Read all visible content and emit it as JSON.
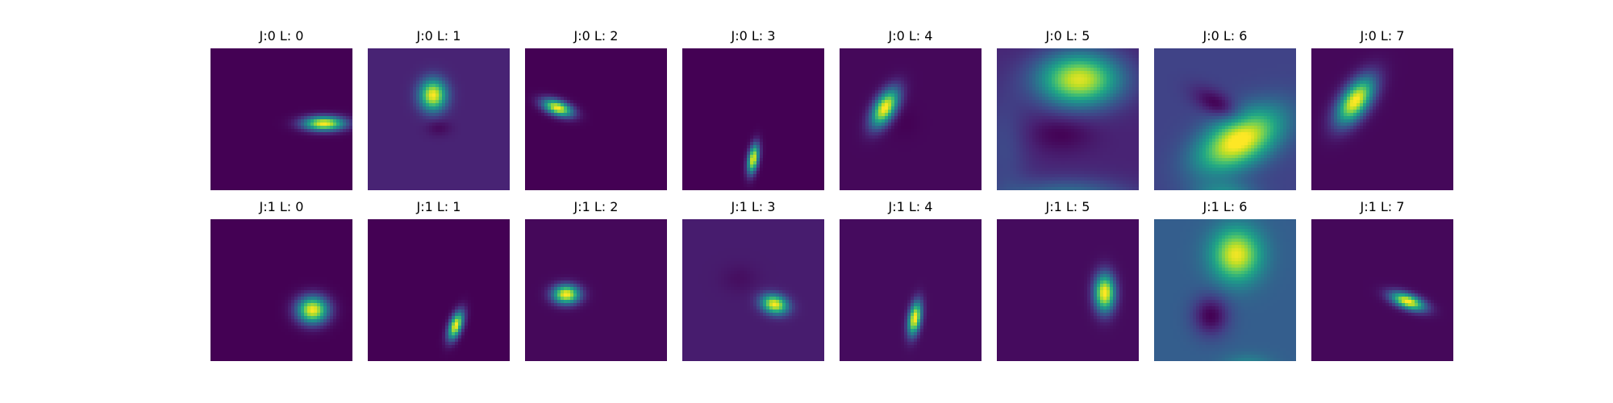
{
  "chart_data": {
    "type": "heatmap",
    "colormap": "viridis",
    "grid": false,
    "axes": "off",
    "rows": 2,
    "cols": 8,
    "panels": [
      {
        "title": "J:0 L: 0",
        "background": 0.0,
        "blobs": [
          {
            "cx": 0.8,
            "cy": 0.53,
            "sx": 0.1,
            "sy": 0.035,
            "angle": 0,
            "amp": 1.0
          }
        ]
      },
      {
        "title": "J:0 L: 1",
        "background": 0.1,
        "blobs": [
          {
            "cx": 0.46,
            "cy": 0.33,
            "sx": 0.065,
            "sy": 0.075,
            "angle": 0,
            "amp": 0.9
          },
          {
            "cx": 0.5,
            "cy": 0.56,
            "sx": 0.06,
            "sy": 0.04,
            "angle": 0,
            "amp": -0.08
          }
        ]
      },
      {
        "title": "J:0 L: 2",
        "background": 0.0,
        "blobs": [
          {
            "cx": 0.23,
            "cy": 0.42,
            "sx": 0.075,
            "sy": 0.035,
            "angle": 20,
            "amp": 1.0
          }
        ]
      },
      {
        "title": "J:0 L: 3",
        "background": 0.0,
        "blobs": [
          {
            "cx": 0.5,
            "cy": 0.78,
            "sx": 0.025,
            "sy": 0.07,
            "angle": 10,
            "amp": 1.0
          }
        ]
      },
      {
        "title": "J:0 L: 4",
        "background": 0.02,
        "blobs": [
          {
            "cx": 0.32,
            "cy": 0.42,
            "sx": 0.05,
            "sy": 0.1,
            "angle": 30,
            "amp": 1.0
          },
          {
            "cx": 0.45,
            "cy": 0.52,
            "sx": 0.08,
            "sy": 0.08,
            "angle": 0,
            "amp": -0.02
          }
        ]
      },
      {
        "title": "J:0 L: 5",
        "background": 0.1,
        "blobs": [
          {
            "cx": 0.58,
            "cy": 0.22,
            "sx": 0.2,
            "sy": 0.13,
            "angle": 0,
            "amp": 0.85
          },
          {
            "cx": 0.45,
            "cy": 0.6,
            "sx": 0.16,
            "sy": 0.09,
            "angle": 0,
            "amp": -0.1
          },
          {
            "cx": 0.5,
            "cy": 1.08,
            "sx": 0.3,
            "sy": 0.1,
            "angle": 0,
            "amp": 0.35
          },
          {
            "cx": 0.05,
            "cy": 0.7,
            "sx": 0.12,
            "sy": 0.3,
            "angle": 0,
            "amp": 0.12
          }
        ]
      },
      {
        "title": "J:0 L: 6",
        "background": 0.2,
        "blobs": [
          {
            "cx": 0.6,
            "cy": 0.65,
            "sx": 0.22,
            "sy": 0.12,
            "angle": -30,
            "amp": 0.85
          },
          {
            "cx": 0.45,
            "cy": 0.4,
            "sx": 0.13,
            "sy": 0.06,
            "angle": 30,
            "amp": -0.22
          },
          {
            "cx": 0.5,
            "cy": 1.02,
            "sx": 0.15,
            "sy": 0.06,
            "angle": 0,
            "amp": 0.25
          }
        ]
      },
      {
        "title": "J:0 L: 7",
        "background": 0.02,
        "blobs": [
          {
            "cx": 0.31,
            "cy": 0.37,
            "sx": 0.065,
            "sy": 0.13,
            "angle": 35,
            "amp": 1.0
          }
        ]
      },
      {
        "title": "J:1 L: 0",
        "background": 0.0,
        "blobs": [
          {
            "cx": 0.72,
            "cy": 0.64,
            "sx": 0.075,
            "sy": 0.065,
            "angle": 0,
            "amp": 1.0
          }
        ]
      },
      {
        "title": "J:1 L: 1",
        "background": 0.0,
        "blobs": [
          {
            "cx": 0.62,
            "cy": 0.75,
            "sx": 0.03,
            "sy": 0.07,
            "angle": 20,
            "amp": 1.0
          }
        ]
      },
      {
        "title": "J:1 L: 2",
        "background": 0.02,
        "blobs": [
          {
            "cx": 0.29,
            "cy": 0.53,
            "sx": 0.065,
            "sy": 0.045,
            "angle": 0,
            "amp": 1.0
          }
        ]
      },
      {
        "title": "J:1 L: 3",
        "background": 0.08,
        "blobs": [
          {
            "cx": 0.65,
            "cy": 0.6,
            "sx": 0.065,
            "sy": 0.045,
            "angle": 15,
            "amp": 0.92
          },
          {
            "cx": 0.4,
            "cy": 0.42,
            "sx": 0.09,
            "sy": 0.07,
            "angle": 0,
            "amp": -0.04
          }
        ]
      },
      {
        "title": "J:1 L: 4",
        "background": 0.03,
        "blobs": [
          {
            "cx": 0.53,
            "cy": 0.7,
            "sx": 0.03,
            "sy": 0.08,
            "angle": 10,
            "amp": 1.0
          }
        ]
      },
      {
        "title": "J:1 L: 5",
        "background": 0.03,
        "blobs": [
          {
            "cx": 0.76,
            "cy": 0.52,
            "sx": 0.05,
            "sy": 0.09,
            "angle": 0,
            "amp": 1.0
          }
        ]
      },
      {
        "title": "J:1 L: 6",
        "background": 0.3,
        "blobs": [
          {
            "cx": 0.58,
            "cy": 0.25,
            "sx": 0.12,
            "sy": 0.13,
            "angle": 0,
            "amp": 0.68
          },
          {
            "cx": 0.4,
            "cy": 0.68,
            "sx": 0.09,
            "sy": 0.1,
            "angle": 0,
            "amp": -0.3
          },
          {
            "cx": 0.66,
            "cy": 1.04,
            "sx": 0.12,
            "sy": 0.06,
            "angle": 0,
            "amp": 0.18
          }
        ]
      },
      {
        "title": "J:1 L: 7",
        "background": 0.02,
        "blobs": [
          {
            "cx": 0.68,
            "cy": 0.58,
            "sx": 0.085,
            "sy": 0.035,
            "angle": 20,
            "amp": 1.0
          }
        ]
      }
    ]
  }
}
